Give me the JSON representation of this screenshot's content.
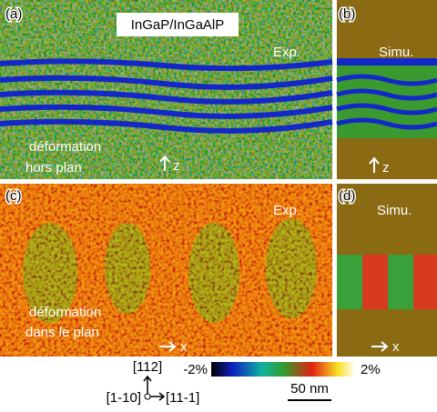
{
  "panels": [
    {
      "label": "(a)",
      "title": "InGaP/InGaAlP",
      "tag": "Exp.",
      "caption": [
        "déformation",
        "hors plan"
      ],
      "axis": "z"
    },
    {
      "label": "(b)",
      "tag": "Simu.",
      "axis": "z"
    },
    {
      "label": "(c)",
      "tag": "Exp.",
      "caption": [
        "déformation",
        "dans le plan"
      ],
      "axis": "x"
    },
    {
      "label": "(d)",
      "tag": "Simu.",
      "axis": "x"
    }
  ],
  "orientation": {
    "up": "[112]",
    "left": "[1-10]",
    "right": "[11-1]"
  },
  "colorbar": {
    "min": "-2%",
    "max": "2%"
  },
  "scale_bar": "50 nm"
}
